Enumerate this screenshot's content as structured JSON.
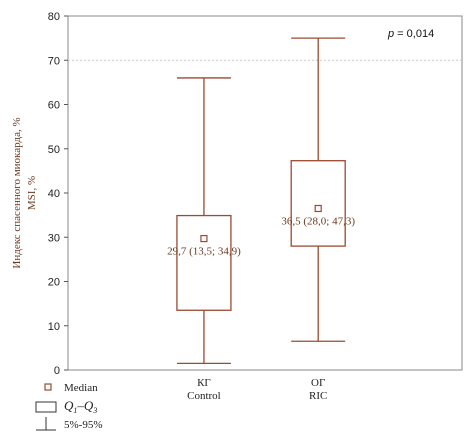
{
  "chart_data": {
    "type": "box",
    "ylabel_line1": "Индекс спасенного миокарда, %",
    "ylabel_line2": "MSI, %",
    "ylim": [
      0,
      80
    ],
    "yticks": [
      0,
      10,
      20,
      30,
      40,
      50,
      60,
      70,
      80
    ],
    "grid": "dotted horizontal at 70",
    "p_value_label": "p",
    "p_value_text": " = 0,014",
    "colors": {
      "box": "#9b4a30",
      "text": "#6a3b1f"
    },
    "groups": [
      {
        "label_line1": "КГ",
        "label_line2": "Control",
        "median": 29.7,
        "q1": 13.5,
        "q3": 34.9,
        "whisker_low": 1.5,
        "whisker_high": 66,
        "annotation": "29,7 (13,5; 34,9)"
      },
      {
        "label_line1": "ОГ",
        "label_line2": "RIC",
        "median": 36.5,
        "q1": 28.0,
        "q3": 47.3,
        "whisker_low": 6.5,
        "whisker_high": 75,
        "annotation": "36,5 (28,0; 47,3)"
      }
    ],
    "legend": {
      "median": "Median",
      "q_text": "Q",
      "q_sub1": "1",
      "q_dash": "–Q",
      "q_sub3": "3",
      "range": "5%-95%"
    }
  }
}
